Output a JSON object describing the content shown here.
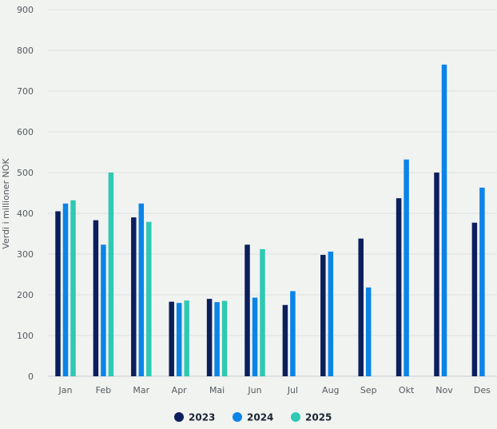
{
  "chart_data": {
    "type": "bar",
    "title": "",
    "xlabel": "",
    "ylabel": "Verdi i millioner NOK",
    "ylim": [
      0,
      900
    ],
    "yticks": [
      0,
      100,
      200,
      300,
      400,
      500,
      600,
      700,
      800,
      900
    ],
    "grid": true,
    "legend_position": "bottom",
    "categories": [
      "Jan",
      "Feb",
      "Mar",
      "Apr",
      "Mai",
      "Jun",
      "Jul",
      "Aug",
      "Sep",
      "Okt",
      "Nov",
      "Des"
    ],
    "series": [
      {
        "name": "2023",
        "color": "#0b1f5c",
        "values": [
          405,
          383,
          390,
          183,
          190,
          323,
          175,
          298,
          338,
          437,
          500,
          377
        ]
      },
      {
        "name": "2024",
        "color": "#0b84e8",
        "values": [
          424,
          323,
          424,
          180,
          182,
          193,
          209,
          306,
          218,
          532,
          765,
          463
        ]
      },
      {
        "name": "2025",
        "color": "#2ec9b4",
        "values": [
          432,
          500,
          379,
          186,
          185,
          312,
          null,
          null,
          null,
          null,
          null,
          null
        ]
      }
    ]
  }
}
